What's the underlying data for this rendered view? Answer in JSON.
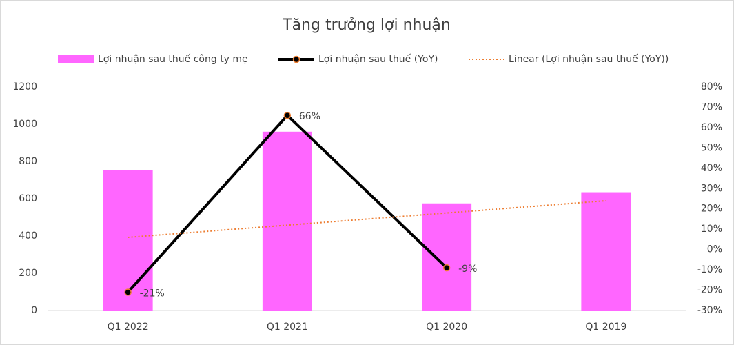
{
  "chart_data": {
    "type": "combo",
    "title": "Tăng trưởng lợi nhuận",
    "categories": [
      "Q1 2022",
      "Q1 2021",
      "Q1 2020",
      "Q1 2019"
    ],
    "series": [
      {
        "name": "Lợi nhuận sau thuế công ty mẹ",
        "type": "bar",
        "color": "#ff66ff",
        "values": [
          755,
          960,
          575,
          635
        ]
      },
      {
        "name": "Lợi nhuận sau thuế (YoY)",
        "type": "line",
        "axis": "y2",
        "color": "#000000",
        "marker_color": "#ed7d31",
        "values": [
          -21,
          66,
          -9,
          null
        ],
        "value_labels": [
          "-21%",
          "66%",
          "-9%",
          null
        ]
      },
      {
        "name": "Linear (Lợi nhuận sau thuế (YoY))",
        "type": "trendline",
        "axis": "y2",
        "color": "#ed7d31",
        "values": [
          6,
          12,
          18,
          24
        ]
      }
    ],
    "ylim": [
      0,
      1200
    ],
    "yticks": [
      0,
      200,
      400,
      600,
      800,
      1000,
      1200
    ],
    "y2lim": [
      -30,
      80
    ],
    "y2ticks": [
      {
        "value": -30,
        "label": "-30%"
      },
      {
        "value": -20,
        "label": "-20%"
      },
      {
        "value": -10,
        "label": "-10%"
      },
      {
        "value": 0,
        "label": "0%"
      },
      {
        "value": 10,
        "label": "10%"
      },
      {
        "value": 20,
        "label": "20%"
      },
      {
        "value": 30,
        "label": "30%"
      },
      {
        "value": 40,
        "label": "40%"
      },
      {
        "value": 50,
        "label": "50%"
      },
      {
        "value": 60,
        "label": "60%"
      },
      {
        "value": 70,
        "label": "70%"
      },
      {
        "value": 80,
        "label": "80%"
      }
    ],
    "grid": false,
    "legend": "top"
  }
}
